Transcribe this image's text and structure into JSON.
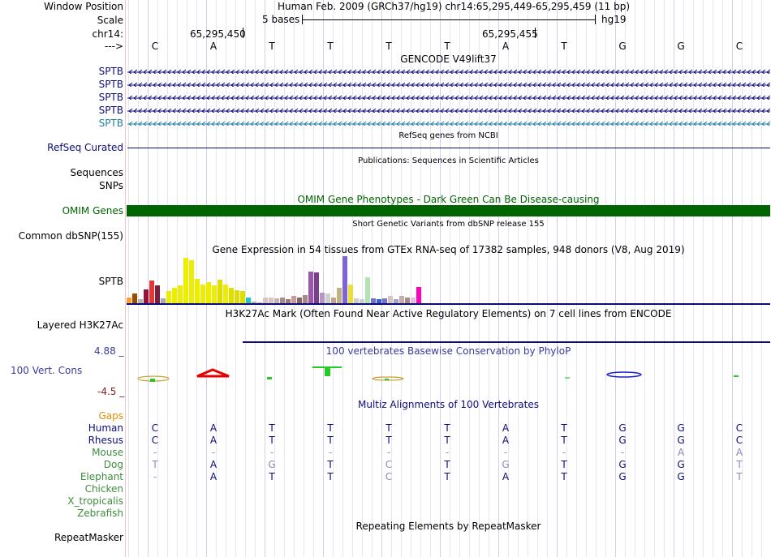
{
  "header": {
    "window_position_label": "Window Position",
    "window_position_value": "Human Feb. 2009 (GRCh37/hg19)   chr14:65,295,449-65,295,459 (11 bp)",
    "scale_label": "Scale",
    "scale_text": "5 bases",
    "scale_assembly": "hg19",
    "chrom_label": "chr14:",
    "coord_1": "65,295,450",
    "coord_2": "65,295,455",
    "strand_label": "--->",
    "bases": [
      "C",
      "A",
      "T",
      "T",
      "T",
      "T",
      "A",
      "T",
      "G",
      "G",
      "C"
    ]
  },
  "gencode": {
    "title": "GENCODE V49lift37",
    "tracks": [
      {
        "label": "SPTB",
        "color": "#0c0c78"
      },
      {
        "label": "SPTB",
        "color": "#0c0c78"
      },
      {
        "label": "SPTB",
        "color": "#0c0c78"
      },
      {
        "label": "SPTB",
        "color": "#0c0c78"
      },
      {
        "label": "SPTB",
        "color": "#1d7fa0"
      }
    ]
  },
  "refseq": {
    "title": "RefSeq genes from NCBI",
    "label": "RefSeq Curated",
    "color": "#0c0c78"
  },
  "publications": {
    "title": "Publications: Sequences in Scientific Articles",
    "label_1": "Sequences",
    "label_2": "SNPs"
  },
  "omim": {
    "title": "OMIM Gene Phenotypes - Dark Green Can Be Disease-causing",
    "label": "OMIM Genes",
    "color": "#006400"
  },
  "dbsnp": {
    "title": "Short Genetic Variants from dbSNP release 155",
    "label": "Common dbSNP(155)"
  },
  "gtex": {
    "title": "Gene Expression in 54 tissues from GTEx RNA-seq of 17382 samples, 948 donors (V8, Aug 2019)",
    "label": "SPTB",
    "bars": [
      {
        "v": 0.12,
        "c": "#ff9f34"
      },
      {
        "v": 0.2,
        "c": "#9c4a00"
      },
      {
        "v": 0.08,
        "c": "#b3b3b3"
      },
      {
        "v": 0.3,
        "c": "#9b0f3b"
      },
      {
        "v": 0.48,
        "c": "#e03737"
      },
      {
        "v": 0.38,
        "c": "#7d1d3b"
      },
      {
        "v": 0.1,
        "c": "#a9a9a9"
      },
      {
        "v": 0.25,
        "c": "#eded00"
      },
      {
        "v": 0.32,
        "c": "#eded00"
      },
      {
        "v": 0.38,
        "c": "#eded00"
      },
      {
        "v": 0.96,
        "c": "#eded00"
      },
      {
        "v": 0.92,
        "c": "#eded00"
      },
      {
        "v": 0.52,
        "c": "#eded00"
      },
      {
        "v": 0.4,
        "c": "#eded00"
      },
      {
        "v": 0.45,
        "c": "#eded00"
      },
      {
        "v": 0.38,
        "c": "#eded00"
      },
      {
        "v": 0.5,
        "c": "#dede00"
      },
      {
        "v": 0.4,
        "c": "#eded00"
      },
      {
        "v": 0.32,
        "c": "#dede00"
      },
      {
        "v": 0.28,
        "c": "#dede00"
      },
      {
        "v": 0.25,
        "c": "#dede00"
      },
      {
        "v": 0.12,
        "c": "#20c6c6"
      },
      {
        "v": 0.03,
        "c": "#b3b3b3"
      },
      {
        "v": 0.02,
        "c": "#b3b3b3"
      },
      {
        "v": 0.12,
        "c": "#d9c3c3"
      },
      {
        "v": 0.12,
        "c": "#d9c3c3"
      },
      {
        "v": 0.1,
        "c": "#c8b1b1"
      },
      {
        "v": 0.12,
        "c": "#aa8888"
      },
      {
        "v": 0.08,
        "c": "#9d7a7a"
      },
      {
        "v": 0.15,
        "c": "#cc9999"
      },
      {
        "v": 0.12,
        "c": "#886666"
      },
      {
        "v": 0.18,
        "c": "#aa8888"
      },
      {
        "v": 0.68,
        "c": "#9a58a8"
      },
      {
        "v": 0.66,
        "c": "#7d3f8d"
      },
      {
        "v": 0.22,
        "c": "#b197c2"
      },
      {
        "v": 0.2,
        "c": "#cfcfcf"
      },
      {
        "v": 0.12,
        "c": "#c3a48f"
      },
      {
        "v": 0.32,
        "c": "#c2b280"
      },
      {
        "v": 1.0,
        "c": "#7f63d9"
      },
      {
        "v": 0.4,
        "c": "#eddf33"
      },
      {
        "v": 0.1,
        "c": "#cfcfcf"
      },
      {
        "v": 0.08,
        "c": "#cfcfcf"
      },
      {
        "v": 0.55,
        "c": "#b3e3b3"
      },
      {
        "v": 0.1,
        "c": "#7070d0"
      },
      {
        "v": 0.08,
        "c": "#3a5fcd"
      },
      {
        "v": 0.1,
        "c": "#7575d0"
      },
      {
        "v": 0.15,
        "c": "#d9c3c3"
      },
      {
        "v": 0.08,
        "c": "#a3a3d3"
      },
      {
        "v": 0.15,
        "c": "#ccaaaa"
      },
      {
        "v": 0.12,
        "c": "#aa8888"
      },
      {
        "v": 0.12,
        "c": "#e0c0e0"
      },
      {
        "v": 0.35,
        "c": "#ff00bb"
      }
    ]
  },
  "h3k27ac": {
    "title": "H3K27Ac Mark (Often Found Near Active Regulatory Elements) on 7 cell lines from ENCODE",
    "label": "Layered H3K27Ac"
  },
  "conservation": {
    "title": "100 vertebrates Basewise Conservation by PhyloP",
    "label": "100 Vert. Cons",
    "max_label": "4.88 _",
    "min_label": "-4.5 _"
  },
  "multiz": {
    "title": "Multiz Alignments of 100 Vertebrates",
    "gaps_label": "Gaps",
    "species": [
      {
        "name": "Human",
        "color": "#0c0c78",
        "seq": [
          "C",
          "A",
          "T",
          "T",
          "T",
          "T",
          "A",
          "T",
          "G",
          "G",
          "C"
        ],
        "shade": [
          0,
          0,
          0,
          0,
          0,
          0,
          0,
          0,
          0,
          0,
          0
        ]
      },
      {
        "name": "Rhesus",
        "color": "#0c0c78",
        "seq": [
          "C",
          "A",
          "T",
          "T",
          "T",
          "T",
          "A",
          "T",
          "G",
          "G",
          "C"
        ],
        "shade": [
          0,
          0,
          0,
          0,
          0,
          0,
          0,
          0,
          0,
          0,
          0
        ]
      },
      {
        "name": "Mouse",
        "color": "#3d8c3d",
        "seq": [
          "-",
          "-",
          "-",
          "-",
          "-",
          "-",
          "-",
          "-",
          "-",
          "A",
          "A"
        ],
        "shade": [
          1,
          1,
          1,
          1,
          1,
          1,
          1,
          1,
          1,
          1,
          1
        ]
      },
      {
        "name": "Dog",
        "color": "#3d8c3d",
        "seq": [
          "T",
          "A",
          "G",
          "T",
          "C",
          "T",
          "G",
          "T",
          "G",
          "G",
          "T"
        ],
        "shade": [
          1,
          0,
          1,
          0,
          1,
          0,
          1,
          0,
          0,
          0,
          1
        ]
      },
      {
        "name": "Elephant",
        "color": "#3d8c3d",
        "seq": [
          "-",
          "A",
          "T",
          "T",
          "C",
          "T",
          "A",
          "T",
          "G",
          "G",
          "T"
        ],
        "shade": [
          1,
          0,
          0,
          0,
          1,
          0,
          0,
          0,
          0,
          0,
          1
        ]
      },
      {
        "name": "Chicken",
        "color": "#3d8c3d",
        "seq": [],
        "shade": []
      },
      {
        "name": "X_tropicalis",
        "color": "#3d8c3d",
        "seq": [],
        "shade": []
      },
      {
        "name": "Zebrafish",
        "color": "#3d8c3d",
        "seq": [],
        "shade": []
      }
    ]
  },
  "repeatmasker": {
    "title": "Repeating Elements by RepeatMasker",
    "label": "RepeatMasker"
  },
  "colors": {
    "navy": "#0c0c78",
    "green": "#006400",
    "cons_blue": "#3c3c9c",
    "cons_red": "#8c1a1a",
    "gaps": "#e68a00"
  }
}
